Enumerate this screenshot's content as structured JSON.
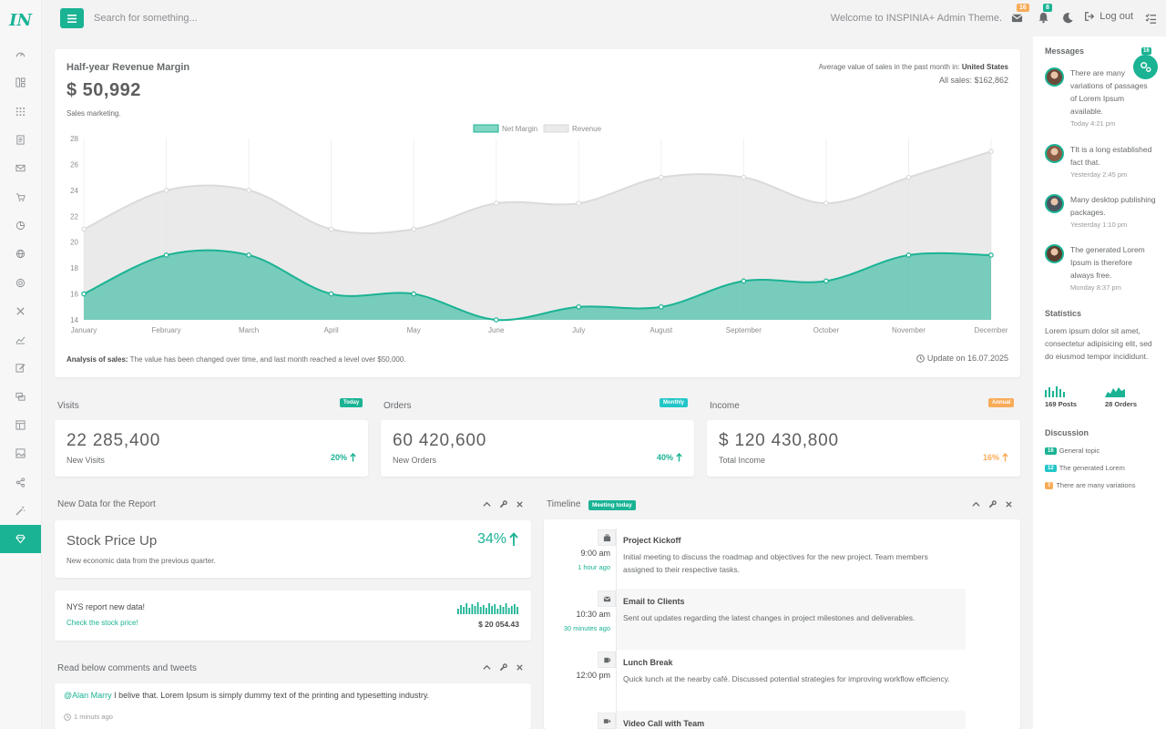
{
  "app": {
    "logo_text": "IN"
  },
  "sidebar": {
    "items": [
      {
        "icon": "dashboard-icon"
      },
      {
        "icon": "layout-icon"
      },
      {
        "icon": "apps-grid-icon"
      },
      {
        "icon": "document-icon"
      },
      {
        "icon": "mail-icon"
      },
      {
        "icon": "cart-icon"
      },
      {
        "icon": "pie-chart-icon"
      },
      {
        "icon": "globe-icon"
      },
      {
        "icon": "target-icon"
      },
      {
        "icon": "tools-icon"
      },
      {
        "icon": "line-chart-icon"
      },
      {
        "icon": "edit-icon"
      },
      {
        "icon": "chat-icon"
      },
      {
        "icon": "table-icon"
      },
      {
        "icon": "gallery-icon"
      },
      {
        "icon": "share-icon"
      },
      {
        "icon": "magic-wand-icon"
      },
      {
        "icon": "diamond-icon"
      }
    ],
    "active_index": 17
  },
  "topbar": {
    "search_placeholder": "Search for something...",
    "welcome": "Welcome to INSPINIA+ Admin Theme.",
    "messages_count": "16",
    "notifications_count": "8",
    "logout": "Log out"
  },
  "colors": {
    "accent": "#1ab394",
    "warning": "#f8ac59",
    "revenue_fill": "#e8e8e8"
  },
  "revenue": {
    "title": "Half-year Revenue Margin",
    "value": "$ 50,992",
    "subtitle": "Sales marketing.",
    "avg_label": "Average value of sales in the past month in:",
    "avg_region": "United States",
    "all_sales": "All sales: $162,862",
    "analysis_label": "Analysis of sales:",
    "analysis_text": "The value has been changed over time, and last month reached a level over $50,000.",
    "update": "Update on 16.07.2025"
  },
  "chart_data": {
    "type": "area",
    "categories": [
      "January",
      "February",
      "March",
      "April",
      "May",
      "June",
      "July",
      "August",
      "September",
      "October",
      "November",
      "December"
    ],
    "series": [
      {
        "name": "Net Margin",
        "values": [
          16,
          19,
          19,
          16,
          16,
          14,
          15,
          15,
          17,
          17,
          19,
          19
        ]
      },
      {
        "name": "Revenue",
        "values": [
          21,
          24,
          24,
          21,
          21,
          23,
          23,
          25,
          25,
          23,
          25,
          27
        ]
      }
    ],
    "yticks": [
      14,
      16,
      18,
      20,
      22,
      24,
      26,
      28
    ],
    "ylim": [
      14,
      28
    ],
    "legend_position": "top-center",
    "grid": "vertical"
  },
  "stats": [
    {
      "title": "Visits",
      "badge": "Today",
      "badge_color": "#1ab394",
      "value": "22 285,400",
      "label": "New Visits",
      "pct": "20%",
      "pct_color": "#1ab394"
    },
    {
      "title": "Orders",
      "badge": "Monthly",
      "badge_color": "#23c6c8",
      "value": "60 420,600",
      "label": "New Orders",
      "pct": "40%",
      "pct_color": "#1ab394"
    },
    {
      "title": "Income",
      "badge": "Annual",
      "badge_color": "#f8ac59",
      "value": "$ 120 430,800",
      "label": "Total Income",
      "pct": "16%",
      "pct_color": "#f8ac59"
    }
  ],
  "report": {
    "header": "New Data for the Report",
    "stock_title": "Stock Price Up",
    "stock_pct": "34%",
    "stock_sub": "New economic data from the previous quarter.",
    "nys_title": "NYS report new data!",
    "nys_link": "Check the stock price!",
    "nys_value": "$ 20 054.43"
  },
  "comments": {
    "header": "Read below comments and tweets",
    "mention": "@Alan Marry",
    "text": "I belive that. Lorem Ipsum is simply dummy text of the printing and typesetting industry.",
    "time": "1 minuts ago"
  },
  "timeline": {
    "header": "Timeline",
    "badge": "Meeting today",
    "events": [
      {
        "time": "9:00 am",
        "ago": "1 hour ago",
        "icon": "briefcase-icon",
        "title": "Project Kickoff",
        "text": "Initial meeting to discuss the roadmap and objectives for the new project. Team members assigned to their respective tasks."
      },
      {
        "time": "10:30 am",
        "ago": "30 minutes ago",
        "icon": "envelope-icon",
        "title": "Email to Clients",
        "text": "Sent out updates regarding the latest changes in project milestones and deliverables."
      },
      {
        "time": "12:00 pm",
        "ago": "",
        "icon": "coffee-icon",
        "title": "Lunch Break",
        "text": "Quick lunch at the nearby café. Discussed potential strategies for improving workflow efficiency."
      },
      {
        "time": "",
        "ago": "",
        "icon": "video-icon",
        "title": "Video Call with Team",
        "text": ""
      }
    ]
  },
  "right_panel": {
    "messages_title": "Messages",
    "settings_count": "16",
    "messages": [
      {
        "text": "There are many variations of passages of Lorem Ipsum available.",
        "time": "Today 4:21 pm"
      },
      {
        "text": "TIt is a long established fact that.",
        "time": "Yesterday 2:45 pm"
      },
      {
        "text": "Many desktop publishing packages.",
        "time": "Yesterday 1:10 pm"
      },
      {
        "text": "The generated Lorem Ipsum is therefore always free.",
        "time": "Monday 8:37 pm"
      }
    ],
    "statistics_title": "Statistics",
    "statistics_text": "Lorem ipsum dolor sit amet, consectetur adipisicing elit, sed do eiusmod tempor incididunt.",
    "posts": "169 Posts",
    "orders": "28 Orders",
    "discussion_title": "Discussion",
    "discussions": [
      {
        "badge": "16",
        "color": "#1ab394",
        "text": "General topic"
      },
      {
        "badge": "12",
        "color": "#23c6c8",
        "text": "The generated Lorem"
      },
      {
        "badge": "7",
        "color": "#f8ac59",
        "text": "There are many variations"
      }
    ]
  }
}
